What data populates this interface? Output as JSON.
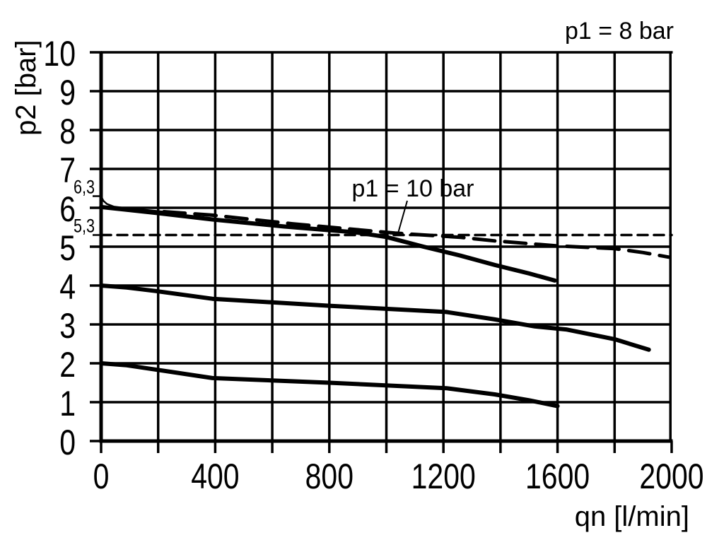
{
  "chart_data": {
    "type": "line",
    "title": "p1 = 8 bar",
    "xlabel": "qn [l/min]",
    "ylabel": "p2 [bar]",
    "xlim": [
      0,
      2000
    ],
    "ylim": [
      0,
      10
    ],
    "grid": "on",
    "x_major_ticks": [
      0,
      400,
      800,
      1200,
      1600,
      2000
    ],
    "x_major_tick_labels": [
      "0",
      "400",
      "800",
      "1200",
      "1600",
      "2000"
    ],
    "x_minor_step": 200,
    "y_ticks": [
      0,
      1,
      2,
      3,
      4,
      5,
      6,
      7,
      8,
      9,
      10
    ],
    "y_tick_labels": [
      "0",
      "1",
      "2",
      "3",
      "4",
      "5",
      "6",
      "7",
      "8",
      "9",
      "10"
    ],
    "y_special_marks": [
      {
        "value": 6.3,
        "label": "6,3"
      },
      {
        "value": 5.3,
        "label": "5,3"
      }
    ],
    "annotation": {
      "label": "p1 = 10 bar",
      "points_to": {
        "qn": 1040,
        "p2": 5.32
      }
    },
    "series": [
      {
        "name": "p1-10bar-initial-drop",
        "style": "solid",
        "stroke_width": 2.5,
        "points": [
          [
            0,
            6.3
          ],
          [
            8,
            6.18
          ],
          [
            20,
            6.1
          ],
          [
            45,
            6.03
          ],
          [
            90,
            5.99
          ],
          [
            150,
            5.95
          ],
          [
            220,
            5.9
          ]
        ]
      },
      {
        "name": "p1-10bar-characteristic",
        "style": "long-dash",
        "stroke_width": 5,
        "points": [
          [
            220,
            5.9
          ],
          [
            390,
            5.81
          ],
          [
            670,
            5.59
          ],
          [
            760,
            5.53
          ],
          [
            1030,
            5.35
          ],
          [
            1260,
            5.24
          ],
          [
            1380,
            5.15
          ],
          [
            1600,
            5.02
          ],
          [
            1800,
            4.95
          ],
          [
            1900,
            4.85
          ],
          [
            1990,
            4.73
          ]
        ]
      },
      {
        "name": "reference-5-3-bar",
        "style": "short-dash",
        "stroke_width": 3.5,
        "points": [
          [
            0,
            5.3
          ],
          [
            2000,
            5.3
          ]
        ]
      },
      {
        "name": "curve-setpoint-6-bar",
        "style": "solid",
        "stroke_width": 6,
        "points": [
          [
            0,
            6.02
          ],
          [
            90,
            5.95
          ],
          [
            190,
            5.87
          ],
          [
            390,
            5.7
          ],
          [
            640,
            5.52
          ],
          [
            890,
            5.37
          ],
          [
            1000,
            5.25
          ],
          [
            1130,
            5.0
          ],
          [
            1260,
            4.77
          ],
          [
            1380,
            4.53
          ],
          [
            1500,
            4.31
          ],
          [
            1590,
            4.13
          ]
        ]
      },
      {
        "name": "curve-setpoint-4-bar",
        "style": "solid",
        "stroke_width": 6,
        "points": [
          [
            0,
            4.0
          ],
          [
            90,
            3.95
          ],
          [
            190,
            3.86
          ],
          [
            390,
            3.66
          ],
          [
            800,
            3.48
          ],
          [
            1210,
            3.32
          ],
          [
            1380,
            3.13
          ],
          [
            1520,
            2.95
          ],
          [
            1630,
            2.87
          ],
          [
            1800,
            2.62
          ],
          [
            1920,
            2.35
          ]
        ]
      },
      {
        "name": "curve-setpoint-2-bar",
        "style": "solid",
        "stroke_width": 6,
        "points": [
          [
            0,
            2.0
          ],
          [
            90,
            1.95
          ],
          [
            190,
            1.84
          ],
          [
            390,
            1.62
          ],
          [
            800,
            1.5
          ],
          [
            1210,
            1.36
          ],
          [
            1380,
            1.2
          ],
          [
            1500,
            1.05
          ],
          [
            1600,
            0.9
          ]
        ]
      }
    ]
  }
}
